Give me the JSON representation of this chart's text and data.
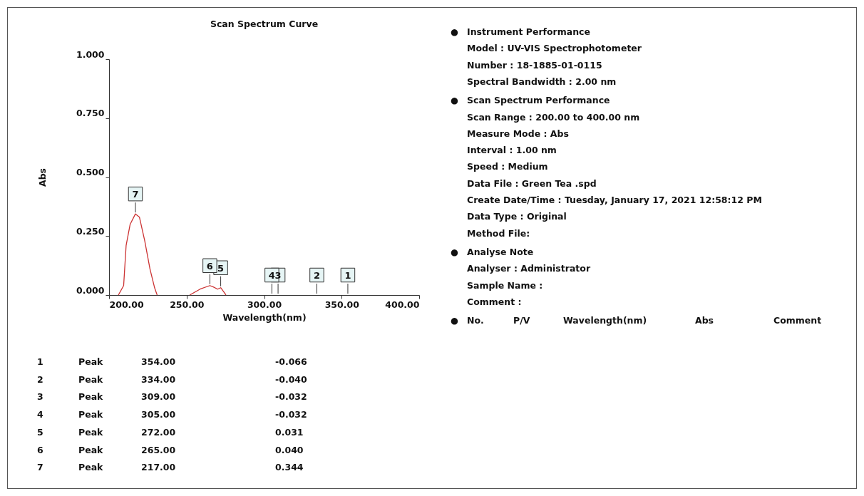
{
  "chart_data": {
    "type": "line",
    "title": "Scan Spectrum Curve",
    "xlabel": "Wavelength(nm)",
    "ylabel": "Abs",
    "xlim": [
      200,
      400
    ],
    "ylim": [
      0,
      1
    ],
    "xticks": [
      {
        "value": 200,
        "label": "200.00"
      },
      {
        "value": 250,
        "label": "250.00"
      },
      {
        "value": 300,
        "label": "300.00"
      },
      {
        "value": 350,
        "label": "350.00"
      },
      {
        "value": 400,
        "label": "400.00"
      }
    ],
    "yticks": [
      {
        "value": 0,
        "label": "0.000"
      },
      {
        "value": 0.25,
        "label": "0.250"
      },
      {
        "value": 0.5,
        "label": "0.500"
      },
      {
        "value": 0.75,
        "label": "0.750"
      },
      {
        "value": 1,
        "label": "1.000"
      }
    ],
    "grid": false,
    "line_style": "solid",
    "marker": "none",
    "series": [
      {
        "color": "#cc3333",
        "x": [
          206,
          209.4,
          211,
          213.6,
          217,
          219.6,
          223,
          226.4,
          229.4,
          231
        ],
        "values": [
          0,
          0.04,
          0.21,
          0.3,
          0.344,
          0.33,
          0.23,
          0.11,
          0.03,
          0
        ]
      },
      {
        "color": "#cc3333",
        "x": [
          252,
          258.7,
          265,
          267,
          270,
          272,
          274,
          275.4
        ],
        "values": [
          0,
          0.025,
          0.04,
          0.035,
          0.025,
          0.031,
          0.013,
          0
        ]
      }
    ],
    "annotations": [
      {
        "text": "1",
        "x": 354
      },
      {
        "text": "2",
        "x": 334
      },
      {
        "text": "3",
        "x": 309
      },
      {
        "text": "4",
        "x": 305
      },
      {
        "text": "5",
        "x": 272,
        "y": 0.031
      },
      {
        "text": "6",
        "x": 265,
        "y": 0.04
      },
      {
        "text": "7",
        "x": 217,
        "y": 0.344
      },
      "●\tInstrument Performance",
      "\tModel : UV-VIS Spectrophotometer",
      "\tNumber : 18-1885-01-0115",
      "\tSpectral Bandwidth : 2.00 nm",
      "●\tScan Spectrum Performance",
      "\tScan Range : 200.00 to 400.00 nm",
      "\tMeasure Mode : Abs",
      "\tInterval : 1.00 nm",
      "\tSpeed : Medium",
      "\tData File : Green Tea .spd",
      "\tCreate Date/Time : Tuesday, January 17, 2021 12:58:12 PM",
      "\tData Type : Original",
      "\tMethod File:",
      "●\tAnalyse Note",
      "\tAnalyser : Administrator",
      "\tSample Name :",
      "\tComment :",
      "●\tNo.\tP/V\tWavelength(nm)\tAbs\tComment",
      "1\tPeak\t354.00\t-0.066",
      "2\tPeak\t334.00\t-0.040",
      "3\tPeak\t309.00\t-0.032",
      "4\tPeak\t305.00\t-0.032",
      "5\tPeak\t272.00\t0.031",
      "6\tPeak\t265.00\t0.040",
      "7\tPeak\t217.00\t0.344"
    ]
  }
}
